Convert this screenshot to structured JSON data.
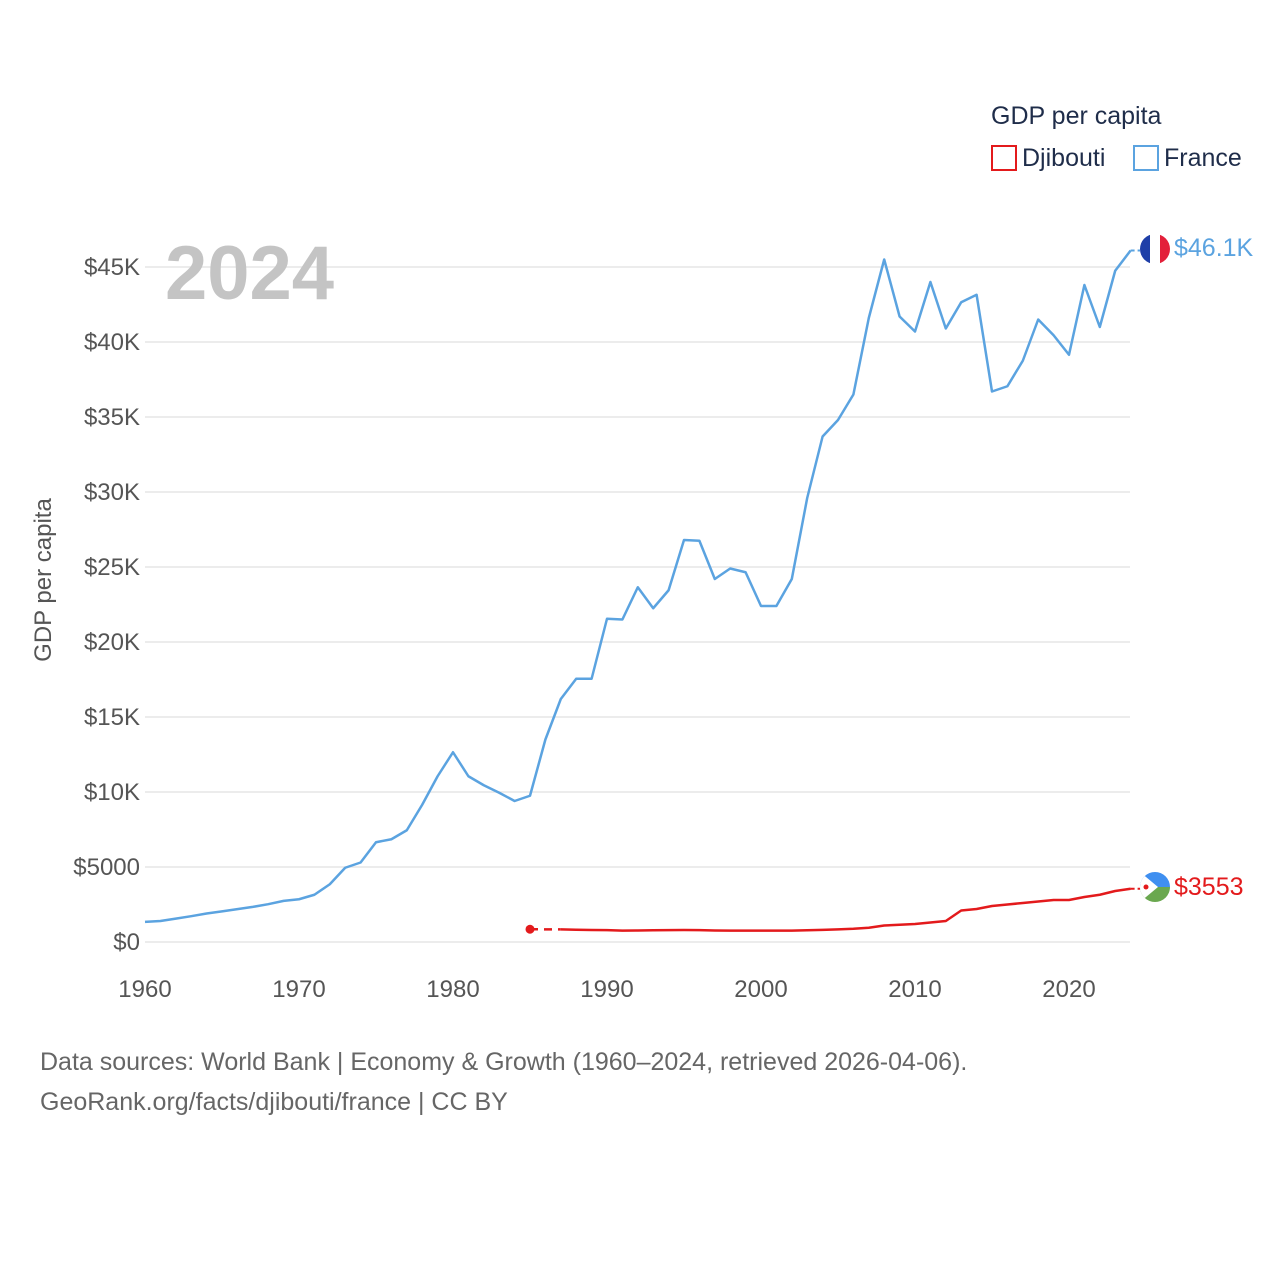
{
  "chart_data": {
    "type": "line",
    "legend_title": "GDP per capita",
    "ylabel": "GDP per capita",
    "current_year": "2024",
    "x_ticks": [
      "1960",
      "1970",
      "1980",
      "1990",
      "2000",
      "2010",
      "2020"
    ],
    "y_ticks": [
      "$0",
      "$5000",
      "$10K",
      "$15K",
      "$20K",
      "$25K",
      "$30K",
      "$35K",
      "$40K",
      "$45K"
    ],
    "xlim": [
      1960,
      2024.5
    ],
    "ylim": [
      0,
      45000
    ],
    "series": [
      {
        "name": "Djibouti",
        "color": "#e31a1c",
        "end_label": "$3553",
        "flag_icon": "djibouti-flag-icon",
        "start_marker_year": 1985,
        "gap_to_year": 1987,
        "x": [
          1985,
          1987,
          1988,
          1989,
          1990,
          1991,
          1992,
          1993,
          1994,
          1995,
          1996,
          1997,
          1998,
          1999,
          2000,
          2001,
          2002,
          2003,
          2004,
          2005,
          2006,
          2007,
          2008,
          2009,
          2010,
          2011,
          2012,
          2013,
          2014,
          2015,
          2016,
          2017,
          2018,
          2019,
          2020,
          2021,
          2022,
          2023,
          2024
        ],
        "values": [
          850,
          840,
          820,
          800,
          790,
          760,
          770,
          780,
          790,
          800,
          790,
          770,
          760,
          760,
          760,
          760,
          760,
          780,
          810,
          840,
          880,
          950,
          1100,
          1150,
          1200,
          1300,
          1400,
          2100,
          2200,
          2400,
          2500,
          2600,
          2700,
          2800,
          2800,
          3000,
          3150,
          3400,
          3553
        ]
      },
      {
        "name": "France",
        "color": "#5ba3e0",
        "end_label": "$46.1K",
        "flag_icon": "france-flag-icon",
        "x": [
          1960,
          1961,
          1962,
          1963,
          1964,
          1965,
          1966,
          1967,
          1968,
          1969,
          1970,
          1971,
          1972,
          1973,
          1974,
          1975,
          1976,
          1977,
          1978,
          1979,
          1980,
          1981,
          1982,
          1983,
          1984,
          1985,
          1986,
          1987,
          1988,
          1989,
          1990,
          1991,
          1992,
          1993,
          1994,
          1995,
          1996,
          1997,
          1998,
          1999,
          2000,
          2001,
          2002,
          2003,
          2004,
          2005,
          2006,
          2007,
          2008,
          2009,
          2010,
          2011,
          2012,
          2013,
          2014,
          2015,
          2016,
          2017,
          2018,
          2019,
          2020,
          2021,
          2022,
          2023,
          2024
        ],
        "values": [
          1340,
          1400,
          1560,
          1720,
          1900,
          2040,
          2190,
          2340,
          2520,
          2740,
          2850,
          3150,
          3850,
          4950,
          5300,
          6650,
          6850,
          7450,
          9150,
          11050,
          12650,
          11050,
          10450,
          9950,
          9400,
          9750,
          13500,
          16200,
          17550,
          17550,
          21550,
          21500,
          23650,
          22250,
          23450,
          26800,
          26750,
          24200,
          24900,
          24650,
          22400,
          22400,
          24200,
          29600,
          33700,
          34800,
          36500,
          41600,
          45500,
          41700,
          40700,
          44000,
          40900,
          42650,
          43150,
          36700,
          37050,
          38750,
          41500,
          40450,
          39150,
          43800,
          41000,
          44750,
          46100
        ]
      }
    ]
  },
  "source": {
    "line1": "Data sources: World Bank | Economy & Growth (1960–2024, retrieved 2026-04-06).",
    "line2": "GeoRank.org/facts/djibouti/france | CC BY"
  }
}
